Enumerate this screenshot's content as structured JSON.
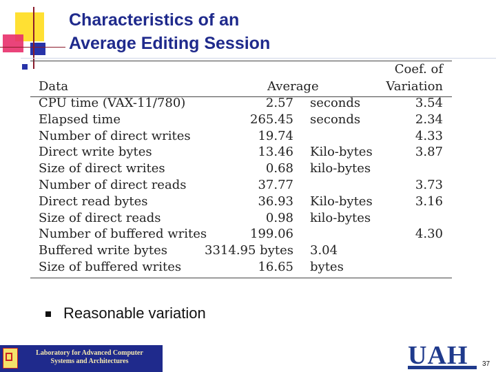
{
  "title_lines": [
    "Characteristics of an",
    "Average Editing Session"
  ],
  "table": {
    "headers": {
      "data": "Data",
      "average": "Average",
      "cov_line1": "Coef. of",
      "cov_line2": "Variation"
    },
    "rows": [
      {
        "data": "CPU time (VAX-11/780)",
        "avg": "2.57",
        "unit": "seconds",
        "cov": "3.54"
      },
      {
        "data": "Elapsed time",
        "avg": "265.45",
        "unit": "seconds",
        "cov": "2.34"
      },
      {
        "data": "Number of direct writes",
        "avg": "19.74",
        "unit": "",
        "cov": "4.33"
      },
      {
        "data": "Direct write bytes",
        "avg": "13.46",
        "unit": "Kilo-bytes",
        "cov": "3.87"
      },
      {
        "data": "Size of direct writes",
        "avg": "0.68",
        "unit": "kilo-bytes",
        "cov": ""
      },
      {
        "data": "Number of direct reads",
        "avg": "37.77",
        "unit": "",
        "cov": "3.73"
      },
      {
        "data": "Direct read bytes",
        "avg": "36.93",
        "unit": "Kilo-bytes",
        "cov": "3.16"
      },
      {
        "data": "Size of direct reads",
        "avg": "0.98",
        "unit": "kilo-bytes",
        "cov": ""
      },
      {
        "data": "Number of buffered writes",
        "avg": "199.06",
        "unit": "",
        "cov": "4.30"
      },
      {
        "data": "Buffered write bytes",
        "avg": "3314.95 bytes",
        "unit": "3.04",
        "cov": ""
      },
      {
        "data": "Size of buffered writes",
        "avg": "16.65",
        "unit": "bytes",
        "cov": ""
      }
    ]
  },
  "bullet_text": "Reasonable variation",
  "footer": {
    "lab_line1": "Laboratory for Advanced Computer",
    "lab_line2": "Systems and Architectures",
    "logo_text": "UAH",
    "page_number": "37"
  },
  "colors": {
    "title": "#1f2a8c",
    "footer_box": "#1f2a8c"
  }
}
